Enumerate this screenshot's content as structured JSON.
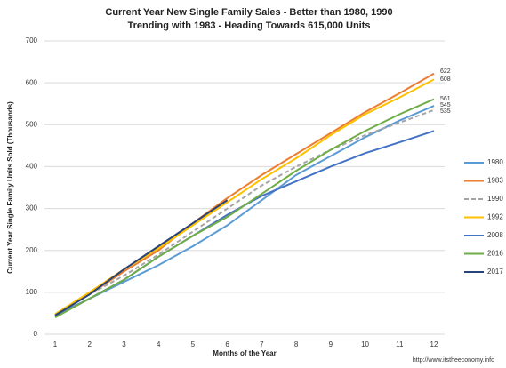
{
  "chart_data": {
    "type": "line",
    "title": "Current Year New Single Family Sales - Better than 1980, 1990",
    "subtitle": "Trending with 1983 - Heading Towards 615,000 Units",
    "x_label": "Months of the Year",
    "y_label": "Current Year Single Family Units Sold (Thousands)",
    "source": "http://www.itstheeconomy.info",
    "x": [
      1,
      2,
      3,
      4,
      5,
      6,
      7,
      8,
      9,
      10,
      11,
      12
    ],
    "xlim": [
      1,
      12
    ],
    "xticks": [
      1,
      2,
      3,
      4,
      5,
      6,
      7,
      8,
      9,
      10,
      11,
      12
    ],
    "ylim": [
      0,
      700
    ],
    "yticks": [
      0,
      100,
      200,
      300,
      400,
      500,
      600,
      700
    ],
    "grid": true,
    "legend": "right",
    "series": [
      {
        "name": "1980",
        "color": "#5b9bd5",
        "values": [
          45,
          85,
          125,
          165,
          210,
          260,
          320,
          380,
          425,
          470,
          510,
          545
        ]
      },
      {
        "name": "1983",
        "color": "#ed7d31",
        "values": [
          45,
          95,
          150,
          200,
          265,
          325,
          380,
          430,
          480,
          530,
          575,
          622
        ]
      },
      {
        "name": "1990",
        "color": "#a5a5a5",
        "dashed": true,
        "values": [
          45,
          95,
          140,
          190,
          245,
          300,
          355,
          400,
          440,
          475,
          505,
          535
        ]
      },
      {
        "name": "1992",
        "color": "#ffc000",
        "values": [
          48,
          100,
          155,
          205,
          260,
          315,
          370,
          420,
          475,
          525,
          565,
          608
        ]
      },
      {
        "name": "2008",
        "color": "#4472c4",
        "values": [
          42,
          85,
          130,
          185,
          235,
          285,
          330,
          365,
          400,
          432,
          458,
          485
        ]
      },
      {
        "name": "2016",
        "color": "#70ad47",
        "values": [
          40,
          85,
          130,
          185,
          235,
          280,
          335,
          390,
          440,
          485,
          525,
          561
        ]
      },
      {
        "name": "2017",
        "color": "#264478",
        "values": [
          45,
          95,
          155,
          210,
          265,
          320,
          null,
          null,
          null,
          null,
          null,
          null
        ]
      }
    ],
    "end_labels": [
      1,
      3,
      5,
      0,
      2
    ]
  }
}
